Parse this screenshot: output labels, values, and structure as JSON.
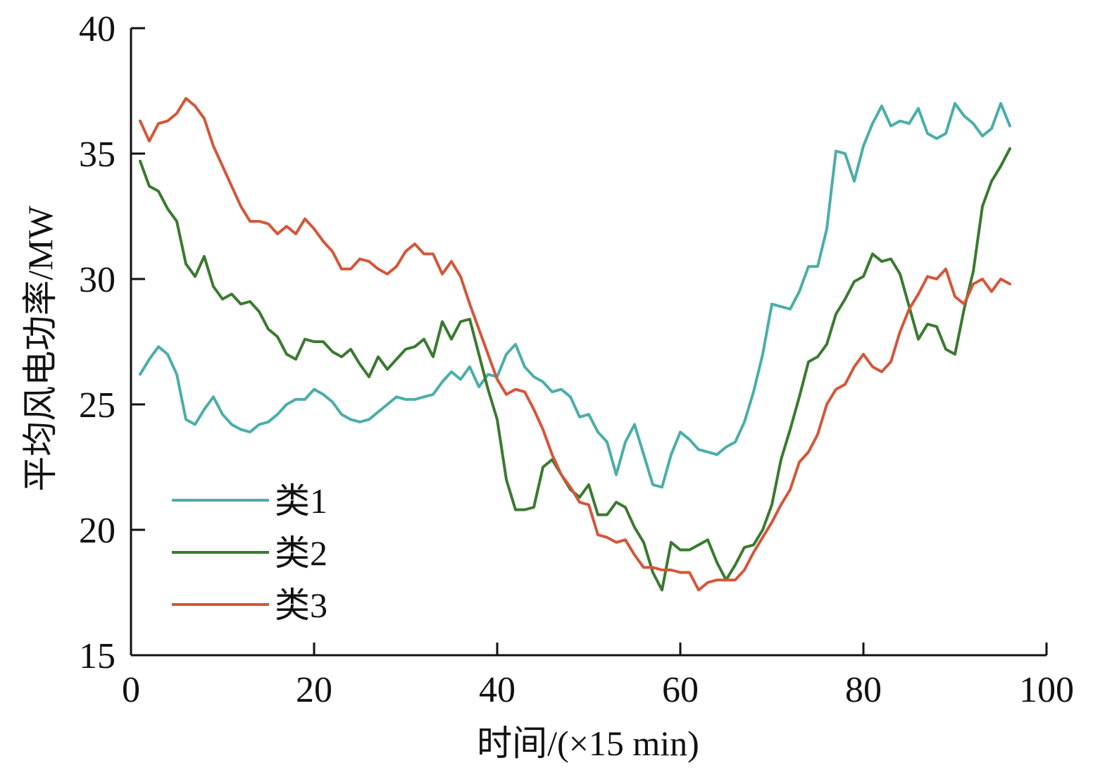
{
  "chart_data": {
    "type": "line",
    "title": "",
    "xlabel": "时间/(×15 min)",
    "ylabel": "平均风电功率/MW",
    "xlim": [
      0,
      100
    ],
    "ylim": [
      15,
      40
    ],
    "xticks": [
      "0",
      "20",
      "40",
      "60",
      "80",
      "100"
    ],
    "yticks": [
      "15",
      "20",
      "25",
      "30",
      "35",
      "40"
    ],
    "grid": false,
    "legend_position": "bottom-left",
    "series": [
      {
        "name": "类1",
        "color": "#4aaea8",
        "points": [
          [
            1,
            26.2
          ],
          [
            2,
            26.8
          ],
          [
            3,
            27.3
          ],
          [
            4,
            27.0
          ],
          [
            5,
            26.2
          ],
          [
            6,
            24.4
          ],
          [
            7,
            24.2
          ],
          [
            8,
            24.8
          ],
          [
            9,
            25.3
          ],
          [
            10,
            24.6
          ],
          [
            11,
            24.2
          ],
          [
            12,
            24.0
          ],
          [
            13,
            23.9
          ],
          [
            14,
            24.2
          ],
          [
            15,
            24.3
          ],
          [
            16,
            24.6
          ],
          [
            17,
            25.0
          ],
          [
            18,
            25.2
          ],
          [
            19,
            25.2
          ],
          [
            20,
            25.6
          ],
          [
            21,
            25.4
          ],
          [
            22,
            25.1
          ],
          [
            23,
            24.6
          ],
          [
            24,
            24.4
          ],
          [
            25,
            24.3
          ],
          [
            26,
            24.4
          ],
          [
            27,
            24.7
          ],
          [
            28,
            25.0
          ],
          [
            29,
            25.3
          ],
          [
            30,
            25.2
          ],
          [
            31,
            25.2
          ],
          [
            32,
            25.3
          ],
          [
            33,
            25.4
          ],
          [
            34,
            25.9
          ],
          [
            35,
            26.3
          ],
          [
            36,
            26.0
          ],
          [
            37,
            26.5
          ],
          [
            38,
            25.7
          ],
          [
            39,
            26.2
          ],
          [
            40,
            26.1
          ],
          [
            41,
            27.0
          ],
          [
            42,
            27.4
          ],
          [
            43,
            26.5
          ],
          [
            44,
            26.1
          ],
          [
            45,
            25.9
          ],
          [
            46,
            25.5
          ],
          [
            47,
            25.6
          ],
          [
            48,
            25.3
          ],
          [
            49,
            24.5
          ],
          [
            50,
            24.6
          ],
          [
            51,
            23.9
          ],
          [
            52,
            23.5
          ],
          [
            53,
            22.2
          ],
          [
            54,
            23.5
          ],
          [
            55,
            24.2
          ],
          [
            56,
            23.0
          ],
          [
            57,
            21.8
          ],
          [
            58,
            21.7
          ],
          [
            59,
            23.0
          ],
          [
            60,
            23.9
          ],
          [
            61,
            23.6
          ],
          [
            62,
            23.2
          ],
          [
            63,
            23.1
          ],
          [
            64,
            23.0
          ],
          [
            65,
            23.3
          ],
          [
            66,
            23.5
          ],
          [
            67,
            24.3
          ],
          [
            68,
            25.5
          ],
          [
            69,
            27.0
          ],
          [
            70,
            29.0
          ],
          [
            71,
            28.9
          ],
          [
            72,
            28.8
          ],
          [
            73,
            29.5
          ],
          [
            74,
            30.5
          ],
          [
            75,
            30.5
          ],
          [
            76,
            32.0
          ],
          [
            77,
            35.1
          ],
          [
            78,
            35.0
          ],
          [
            79,
            33.9
          ],
          [
            80,
            35.3
          ],
          [
            81,
            36.2
          ],
          [
            82,
            36.9
          ],
          [
            83,
            36.1
          ],
          [
            84,
            36.3
          ],
          [
            85,
            36.2
          ],
          [
            86,
            36.8
          ],
          [
            87,
            35.8
          ],
          [
            88,
            35.6
          ],
          [
            89,
            35.8
          ],
          [
            90,
            37.0
          ],
          [
            91,
            36.5
          ],
          [
            92,
            36.2
          ],
          [
            93,
            35.7
          ],
          [
            94,
            36.0
          ],
          [
            95,
            37.0
          ],
          [
            96,
            36.1
          ]
        ]
      },
      {
        "name": "类2",
        "color": "#3a7a30",
        "points": [
          [
            1,
            34.7
          ],
          [
            2,
            33.7
          ],
          [
            3,
            33.5
          ],
          [
            4,
            32.8
          ],
          [
            5,
            32.3
          ],
          [
            6,
            30.6
          ],
          [
            7,
            30.1
          ],
          [
            8,
            30.9
          ],
          [
            9,
            29.7
          ],
          [
            10,
            29.2
          ],
          [
            11,
            29.4
          ],
          [
            12,
            29.0
          ],
          [
            13,
            29.1
          ],
          [
            14,
            28.7
          ],
          [
            15,
            28.0
          ],
          [
            16,
            27.7
          ],
          [
            17,
            27.0
          ],
          [
            18,
            26.8
          ],
          [
            19,
            27.6
          ],
          [
            20,
            27.5
          ],
          [
            21,
            27.5
          ],
          [
            22,
            27.1
          ],
          [
            23,
            26.9
          ],
          [
            24,
            27.2
          ],
          [
            25,
            26.6
          ],
          [
            26,
            26.1
          ],
          [
            27,
            26.9
          ],
          [
            28,
            26.4
          ],
          [
            29,
            26.8
          ],
          [
            30,
            27.2
          ],
          [
            31,
            27.3
          ],
          [
            32,
            27.6
          ],
          [
            33,
            26.9
          ],
          [
            34,
            28.3
          ],
          [
            35,
            27.6
          ],
          [
            36,
            28.3
          ],
          [
            37,
            28.4
          ],
          [
            38,
            27.0
          ],
          [
            39,
            25.6
          ],
          [
            40,
            24.4
          ],
          [
            41,
            22.0
          ],
          [
            42,
            20.8
          ],
          [
            43,
            20.8
          ],
          [
            44,
            20.9
          ],
          [
            45,
            22.5
          ],
          [
            46,
            22.8
          ],
          [
            47,
            22.2
          ],
          [
            48,
            21.6
          ],
          [
            49,
            21.3
          ],
          [
            50,
            21.8
          ],
          [
            51,
            20.6
          ],
          [
            52,
            20.6
          ],
          [
            53,
            21.1
          ],
          [
            54,
            20.9
          ],
          [
            55,
            20.1
          ],
          [
            56,
            19.5
          ],
          [
            57,
            18.3
          ],
          [
            58,
            17.6
          ],
          [
            59,
            19.5
          ],
          [
            60,
            19.2
          ],
          [
            61,
            19.2
          ],
          [
            62,
            19.4
          ],
          [
            63,
            19.6
          ],
          [
            64,
            18.7
          ],
          [
            65,
            18.0
          ],
          [
            66,
            18.6
          ],
          [
            67,
            19.3
          ],
          [
            68,
            19.4
          ],
          [
            69,
            20.0
          ],
          [
            70,
            21.0
          ],
          [
            71,
            22.8
          ],
          [
            72,
            24.0
          ],
          [
            73,
            25.3
          ],
          [
            74,
            26.7
          ],
          [
            75,
            26.9
          ],
          [
            76,
            27.4
          ],
          [
            77,
            28.6
          ],
          [
            78,
            29.2
          ],
          [
            79,
            29.9
          ],
          [
            80,
            30.1
          ],
          [
            81,
            31.0
          ],
          [
            82,
            30.7
          ],
          [
            83,
            30.8
          ],
          [
            84,
            30.2
          ],
          [
            85,
            28.9
          ],
          [
            86,
            27.6
          ],
          [
            87,
            28.2
          ],
          [
            88,
            28.1
          ],
          [
            89,
            27.2
          ],
          [
            90,
            27.0
          ],
          [
            91,
            28.8
          ],
          [
            92,
            30.3
          ],
          [
            93,
            32.9
          ],
          [
            94,
            33.9
          ],
          [
            95,
            34.5
          ],
          [
            96,
            35.2
          ]
        ]
      },
      {
        "name": "类3",
        "color": "#d4563a",
        "points": [
          [
            1,
            36.3
          ],
          [
            2,
            35.5
          ],
          [
            3,
            36.2
          ],
          [
            4,
            36.3
          ],
          [
            5,
            36.6
          ],
          [
            6,
            37.2
          ],
          [
            7,
            36.9
          ],
          [
            8,
            36.4
          ],
          [
            9,
            35.3
          ],
          [
            10,
            34.5
          ],
          [
            11,
            33.7
          ],
          [
            12,
            32.9
          ],
          [
            13,
            32.3
          ],
          [
            14,
            32.3
          ],
          [
            15,
            32.2
          ],
          [
            16,
            31.8
          ],
          [
            17,
            32.1
          ],
          [
            18,
            31.8
          ],
          [
            19,
            32.4
          ],
          [
            20,
            32.0
          ],
          [
            21,
            31.5
          ],
          [
            22,
            31.1
          ],
          [
            23,
            30.4
          ],
          [
            24,
            30.4
          ],
          [
            25,
            30.8
          ],
          [
            26,
            30.7
          ],
          [
            27,
            30.4
          ],
          [
            28,
            30.2
          ],
          [
            29,
            30.5
          ],
          [
            30,
            31.1
          ],
          [
            31,
            31.4
          ],
          [
            32,
            31.0
          ],
          [
            33,
            31.0
          ],
          [
            34,
            30.2
          ],
          [
            35,
            30.7
          ],
          [
            36,
            30.1
          ],
          [
            37,
            29.0
          ],
          [
            38,
            28.0
          ],
          [
            39,
            27.0
          ],
          [
            40,
            26.0
          ],
          [
            41,
            25.4
          ],
          [
            42,
            25.6
          ],
          [
            43,
            25.5
          ],
          [
            44,
            24.8
          ],
          [
            45,
            24.0
          ],
          [
            46,
            23.0
          ],
          [
            47,
            22.2
          ],
          [
            48,
            21.7
          ],
          [
            49,
            21.1
          ],
          [
            50,
            21.0
          ],
          [
            51,
            19.8
          ],
          [
            52,
            19.7
          ],
          [
            53,
            19.5
          ],
          [
            54,
            19.6
          ],
          [
            55,
            19.0
          ],
          [
            56,
            18.5
          ],
          [
            57,
            18.5
          ],
          [
            58,
            18.4
          ],
          [
            59,
            18.4
          ],
          [
            60,
            18.3
          ],
          [
            61,
            18.3
          ],
          [
            62,
            17.6
          ],
          [
            63,
            17.9
          ],
          [
            64,
            18.0
          ],
          [
            65,
            18.0
          ],
          [
            66,
            18.0
          ],
          [
            67,
            18.4
          ],
          [
            68,
            19.1
          ],
          [
            69,
            19.7
          ],
          [
            70,
            20.3
          ],
          [
            71,
            21.0
          ],
          [
            72,
            21.6
          ],
          [
            73,
            22.7
          ],
          [
            74,
            23.1
          ],
          [
            75,
            23.8
          ],
          [
            76,
            25.0
          ],
          [
            77,
            25.6
          ],
          [
            78,
            25.8
          ],
          [
            79,
            26.5
          ],
          [
            80,
            27.0
          ],
          [
            81,
            26.5
          ],
          [
            82,
            26.3
          ],
          [
            83,
            26.7
          ],
          [
            84,
            27.9
          ],
          [
            85,
            28.8
          ],
          [
            86,
            29.4
          ],
          [
            87,
            30.1
          ],
          [
            88,
            30.0
          ],
          [
            89,
            30.4
          ],
          [
            90,
            29.3
          ],
          [
            91,
            29.0
          ],
          [
            92,
            29.8
          ],
          [
            93,
            30.0
          ],
          [
            94,
            29.5
          ],
          [
            95,
            30.0
          ],
          [
            96,
            29.8
          ]
        ]
      }
    ]
  }
}
